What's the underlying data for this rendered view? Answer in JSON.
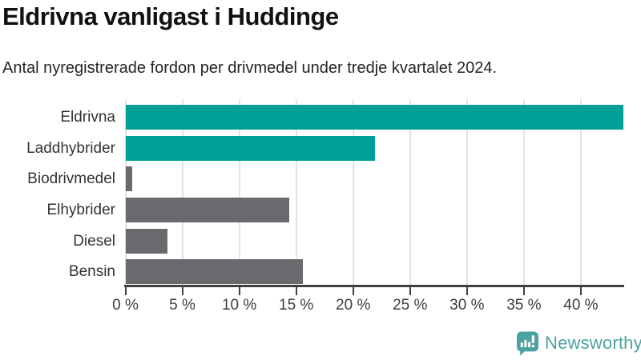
{
  "header": {
    "title": "Eldrivna vanligast i Huddinge",
    "subtitle": "Antal nyregistrerade fordon per drivmedel under tredje kvartalet 2024."
  },
  "chart_data": {
    "type": "bar",
    "orientation": "horizontal",
    "title": "Eldrivna vanligast i Huddinge",
    "subtitle": "Antal nyregistrerade fordon per drivmedel under tredje kvartalet 2024.",
    "categories": [
      "Eldrivna",
      "Laddhybrider",
      "Biodrivmedel",
      "Elhybrider",
      "Diesel",
      "Bensin"
    ],
    "values": [
      43.7,
      21.9,
      0.6,
      14.4,
      3.7,
      15.6
    ],
    "unit": "%",
    "bar_colors": [
      "#00a099",
      "#00a099",
      "#696a6e",
      "#696a6e",
      "#696a6e",
      "#696a6e"
    ],
    "xlim": [
      0,
      43.7
    ],
    "xticks": [
      0,
      5,
      10,
      15,
      20,
      25,
      30,
      35,
      40
    ],
    "xtick_labels": [
      "0 %",
      "5 %",
      "10 %",
      "15 %",
      "20 %",
      "25 %",
      "30 %",
      "35 %",
      "40 %"
    ],
    "grid": "vertical",
    "legend": "none"
  },
  "colors": {
    "highlight": "#00a099",
    "muted": "#696a6e",
    "gridline": "#e3e3e3",
    "axis": "#404040",
    "brand": "#4ba3a1"
  },
  "footer": {
    "brand": "Newsworthy",
    "icon": "newsworthy-speech-bubble-bar-chart-icon"
  }
}
